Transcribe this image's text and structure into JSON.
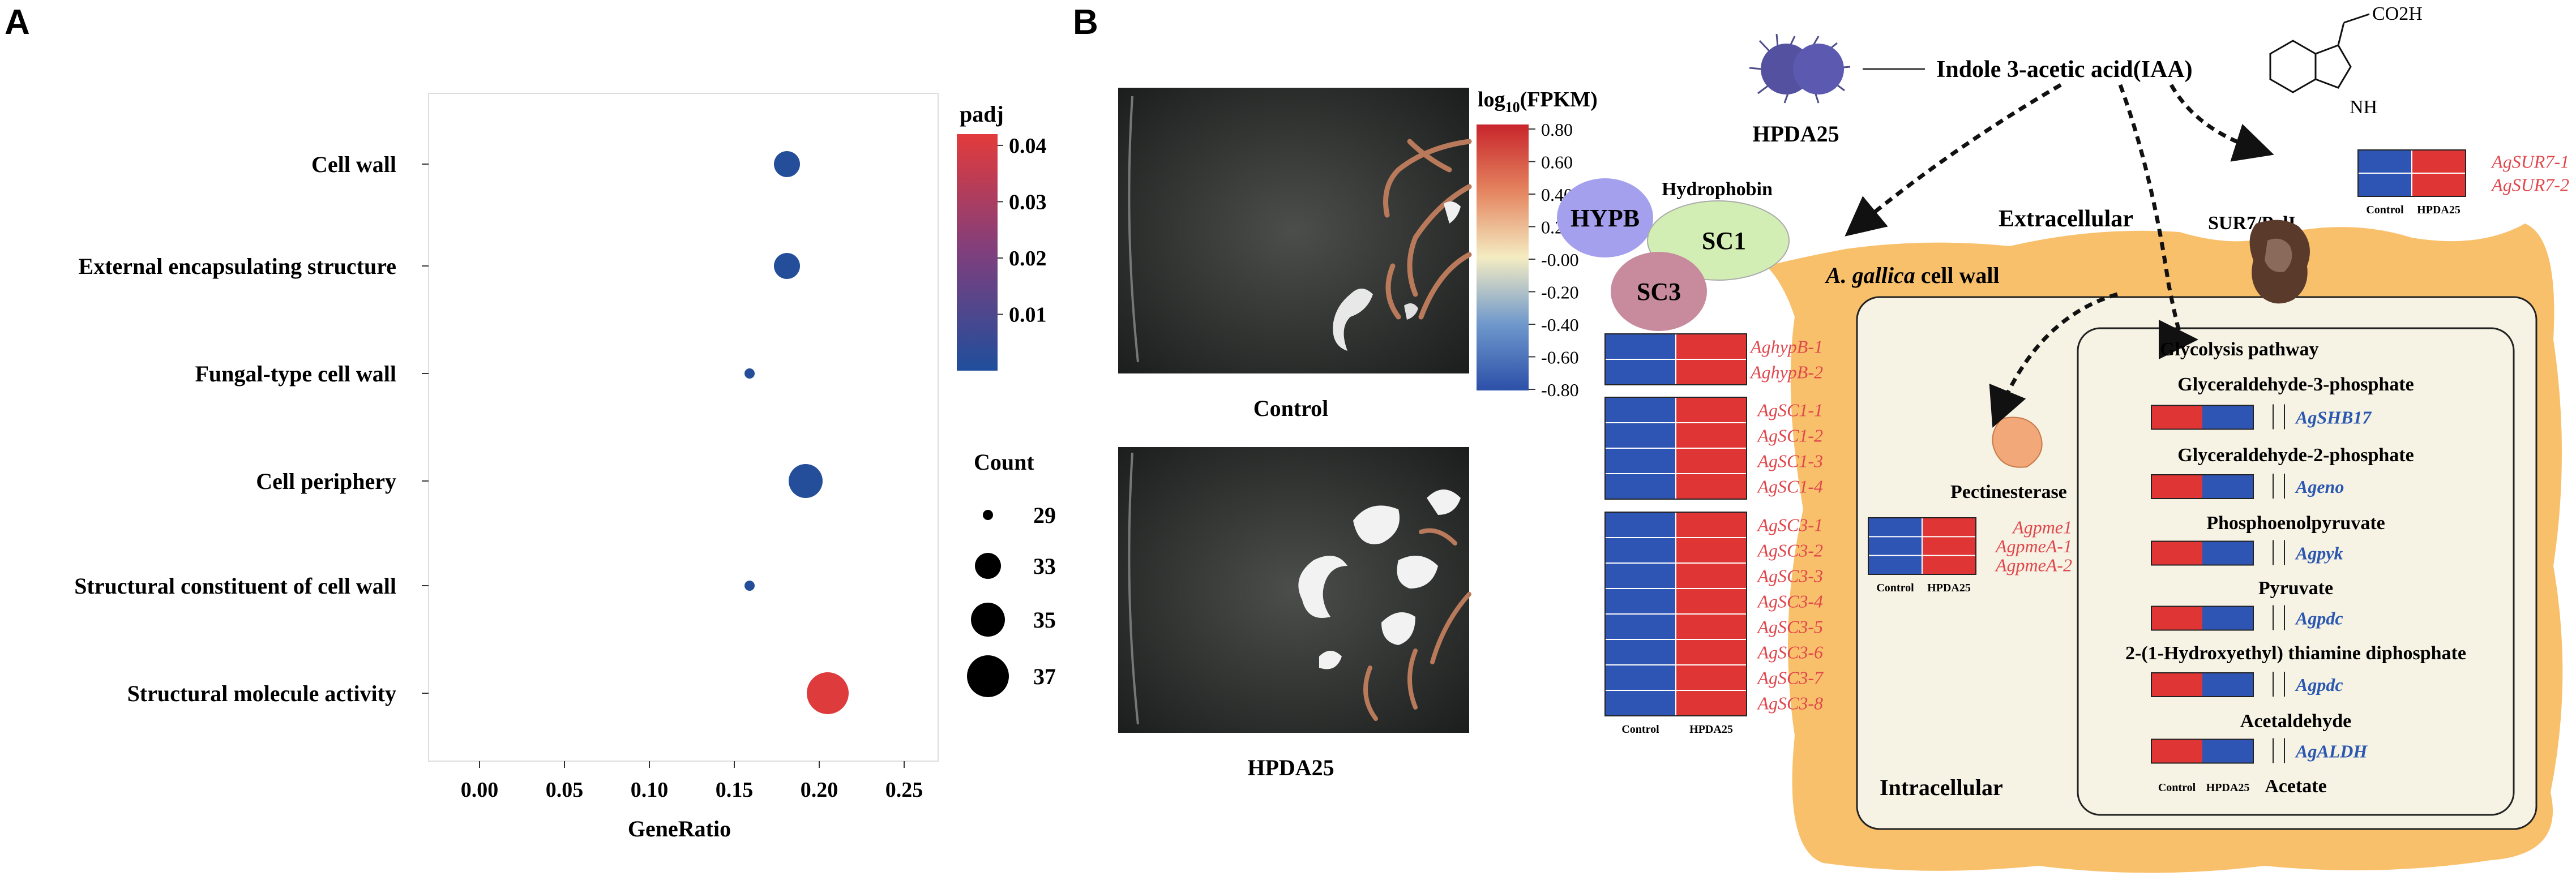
{
  "panels": {
    "a": "A",
    "b": "B"
  },
  "chart_data": {
    "type": "scatter",
    "title": "",
    "xlabel": "GeneRatio",
    "ylabel": "",
    "xlim": [
      -0.03,
      0.27
    ],
    "xticks": [
      "0.00",
      "0.05",
      "0.10",
      "0.15",
      "0.20",
      "0.25"
    ],
    "xtick_values": [
      0,
      0.05,
      0.1,
      0.15,
      0.2,
      0.25
    ],
    "categories": [
      "Cell wall",
      "External encapsulating structure",
      "Fungal-type cell wall",
      "Cell periphery",
      "Structural constituent of cell wall",
      "Structural molecule activity"
    ],
    "gene_ratio": [
      0.181,
      0.181,
      0.159,
      0.192,
      0.159,
      0.205
    ],
    "count": [
      33,
      33,
      29,
      35,
      29,
      37
    ],
    "padj": [
      0.001,
      0.001,
      0.001,
      0.001,
      0.001,
      0.041
    ],
    "legend_color": {
      "title": "padj",
      "ticks": [
        "0.01",
        "0.02",
        "0.03",
        "0.04"
      ],
      "tick_values": [
        0.01,
        0.02,
        0.03,
        0.04
      ],
      "range": [
        0,
        0.042
      ],
      "low_color": "#1f4e9c",
      "high_color": "#e33b3b"
    },
    "legend_size": {
      "title": "Count",
      "values": [
        29,
        33,
        35,
        37
      ],
      "labels": [
        "29",
        "33",
        "35",
        "37"
      ]
    }
  },
  "photos": {
    "control_label": "Control",
    "treated_label": "HPDA25"
  },
  "heat_legend": {
    "title_pre": "log",
    "title_sub": "10",
    "title_post": "(FPKM)",
    "ticks": [
      "0.80",
      "0.60",
      "0.40",
      "0.20",
      "-0.00",
      "-0.20",
      "-0.40",
      "-0.60",
      "-0.80"
    ]
  },
  "pathway": {
    "strain": "HPDA25",
    "iaa": "Indole 3-acetic acid(IAA)",
    "iaa_group": "CO2H",
    "iaa_nh": "NH",
    "hydrophobin": "Hydrophobin",
    "hypb": "HYPB",
    "sc1": "SC1",
    "sc3": "SC3",
    "extracellular": "Extracellular",
    "cell_wall_species": "A. gallica",
    "cell_wall_rest": " cell wall",
    "intracellular": "Intracellular",
    "sur7": "SUR7/PalI",
    "pectinesterase": "Pectinesterase",
    "glycolysis": "Glycolysis pathway",
    "metabolites": [
      "Glyceraldehyde-3-phosphate",
      "Glyceraldehyde-2-phosphate",
      "Phosphoenolpyruvate",
      "Pyruvate",
      "2-(1-Hydroxyethyl) thiamine diphosphate",
      "Acetaldehyde",
      "Acetate"
    ],
    "enzymes": [
      "AgSHB17",
      "Ageno",
      "Agpyk",
      "Agpdc",
      "Agpdc",
      "AgALDH"
    ],
    "hyp_genes": [
      "AghypB-1",
      "AghypB-2"
    ],
    "sc1_genes": [
      "AgSC1-1",
      "AgSC1-2",
      "AgSC1-3",
      "AgSC1-4"
    ],
    "sc3_genes": [
      "AgSC3-1",
      "AgSC3-2",
      "AgSC3-3",
      "AgSC3-4",
      "AgSC3-5",
      "AgSC3-6",
      "AgSC3-7",
      "AgSC3-8"
    ],
    "sur7_genes": [
      "AgSUR7-1",
      "AgSUR7-2"
    ],
    "pme_genes": [
      "Agpme1",
      "AgpmeA-1",
      "AgpmeA-2"
    ],
    "col_control": "Control",
    "col_treated": "HPDA25",
    "heat_low_color": "#2f55b4",
    "heat_high_color": "#df3535",
    "wall_color": "#f9c06b"
  }
}
